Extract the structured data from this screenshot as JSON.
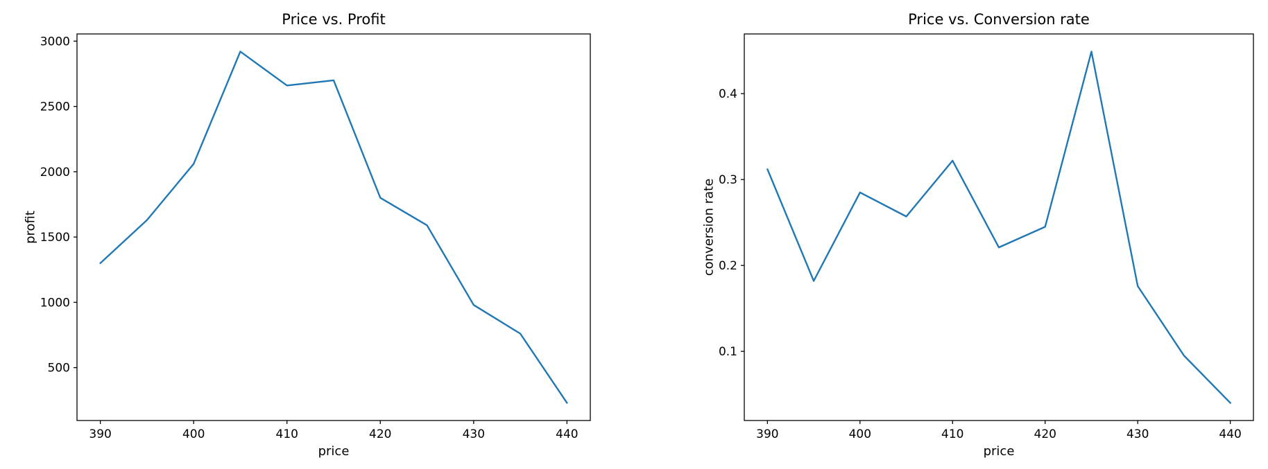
{
  "figure": {
    "background": "#ffffff"
  },
  "chart_data": [
    {
      "type": "line",
      "title": "Price vs. Profit",
      "xlabel": "price",
      "ylabel": "profit",
      "x": [
        390,
        395,
        400,
        405,
        410,
        415,
        420,
        425,
        430,
        435,
        440
      ],
      "y": [
        1300,
        1630,
        2060,
        2920,
        2660,
        2700,
        1800,
        1590,
        980,
        760,
        230
      ],
      "xlim": [
        387.5,
        442.5
      ],
      "ylim": [
        95,
        3055
      ],
      "xticks": [
        390,
        400,
        410,
        420,
        430,
        440
      ],
      "yticks": [
        500,
        1000,
        1500,
        2000,
        2500,
        3000
      ],
      "grid": false,
      "legend": null,
      "line_color": "#1f77b4"
    },
    {
      "type": "line",
      "title": "Price vs. Conversion rate",
      "xlabel": "price",
      "ylabel": "conversion rate",
      "x": [
        390,
        395,
        400,
        405,
        410,
        415,
        420,
        425,
        430,
        435,
        440
      ],
      "y": [
        0.312,
        0.182,
        0.285,
        0.257,
        0.322,
        0.221,
        0.245,
        0.449,
        0.176,
        0.095,
        0.04
      ],
      "xlim": [
        387.5,
        442.5
      ],
      "ylim": [
        0.0195,
        0.4695
      ],
      "xticks": [
        390,
        400,
        410,
        420,
        430,
        440
      ],
      "yticks": [
        0.1,
        0.2,
        0.3,
        0.4
      ],
      "grid": false,
      "legend": null,
      "line_color": "#1f77b4"
    }
  ]
}
